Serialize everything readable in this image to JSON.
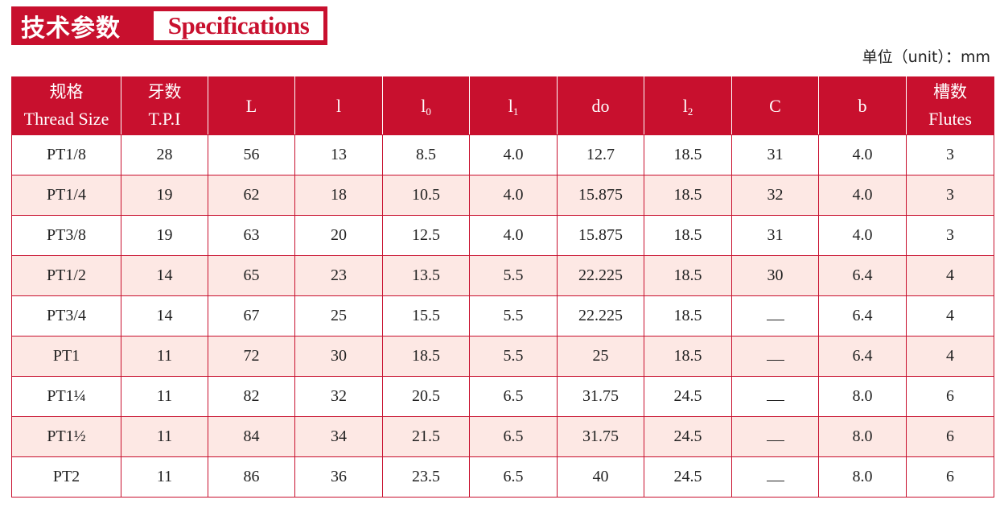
{
  "title": {
    "cn": "技术参数",
    "en": "Specifications"
  },
  "unit": "单位（unit）：mm",
  "colors": {
    "accent": "#c8102e",
    "row_alt": "#fde8e4"
  },
  "table": {
    "headers": [
      {
        "cn": "规格",
        "en": "Thread Size"
      },
      {
        "cn": "牙数",
        "en": "T.P.I"
      },
      {
        "label": "L"
      },
      {
        "label": "l"
      },
      {
        "label": "l",
        "sub": "0"
      },
      {
        "label": "l",
        "sub": "1"
      },
      {
        "label": "do"
      },
      {
        "label": "l",
        "sub": "2"
      },
      {
        "label": "C"
      },
      {
        "label": "b"
      },
      {
        "cn": "槽数",
        "en": "Flutes"
      }
    ],
    "rows": [
      [
        "PT1/8",
        "28",
        "56",
        "13",
        "8.5",
        "4.0",
        "12.7",
        "18.5",
        "31",
        "4.0",
        "3"
      ],
      [
        "PT1/4",
        "19",
        "62",
        "18",
        "10.5",
        "4.0",
        "15.875",
        "18.5",
        "32",
        "4.0",
        "3"
      ],
      [
        "PT3/8",
        "19",
        "63",
        "20",
        "12.5",
        "4.0",
        "15.875",
        "18.5",
        "31",
        "4.0",
        "3"
      ],
      [
        "PT1/2",
        "14",
        "65",
        "23",
        "13.5",
        "5.5",
        "22.225",
        "18.5",
        "30",
        "6.4",
        "4"
      ],
      [
        "PT3/4",
        "14",
        "67",
        "25",
        "15.5",
        "5.5",
        "22.225",
        "18.5",
        "—",
        "6.4",
        "4"
      ],
      [
        "PT1",
        "11",
        "72",
        "30",
        "18.5",
        "5.5",
        "25",
        "18.5",
        "—",
        "6.4",
        "4"
      ],
      [
        "PT1¼",
        "11",
        "82",
        "32",
        "20.5",
        "6.5",
        "31.75",
        "24.5",
        "—",
        "8.0",
        "6"
      ],
      [
        "PT1½",
        "11",
        "84",
        "34",
        "21.5",
        "6.5",
        "31.75",
        "24.5",
        "—",
        "8.0",
        "6"
      ],
      [
        "PT2",
        "11",
        "86",
        "36",
        "23.5",
        "6.5",
        "40",
        "24.5",
        "—",
        "8.0",
        "6"
      ]
    ]
  }
}
